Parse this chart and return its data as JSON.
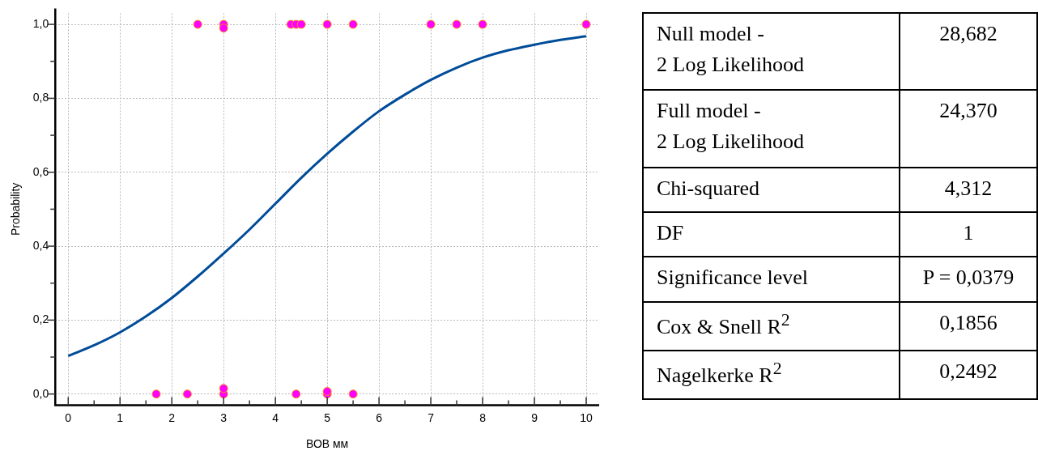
{
  "chart_data": [
    {
      "type": "scatter",
      "xlabel": "ВОВ мм",
      "ylabel": "Probability",
      "xlim": [
        -0.25,
        10.25
      ],
      "ylim": [
        -0.03,
        1.03
      ],
      "xticks": [
        0,
        {
          "value": 0.5,
          "label": null
        },
        1,
        {
          "value": 1.5,
          "label": null
        },
        2,
        {
          "value": 2.5,
          "label": null
        },
        3,
        {
          "value": 3.5,
          "label": null
        },
        4,
        {
          "value": 4.5,
          "label": null
        },
        5,
        {
          "value": 5.5,
          "label": null
        },
        6,
        {
          "value": 6.5,
          "label": null
        },
        7,
        {
          "value": 7.5,
          "label": null
        },
        8,
        {
          "value": 8.5,
          "label": null
        },
        9,
        {
          "value": 9.5,
          "label": null
        },
        10
      ],
      "yticks": [
        {
          "value": 0,
          "label": "0,0"
        },
        {
          "value": 0.1,
          "label": null
        },
        {
          "value": 0.2,
          "label": "0,2"
        },
        {
          "value": 0.3,
          "label": null
        },
        {
          "value": 0.4,
          "label": "0,4"
        },
        {
          "value": 0.5,
          "label": null
        },
        {
          "value": 0.6,
          "label": "0,6"
        },
        {
          "value": 0.7,
          "label": null
        },
        {
          "value": 0.8,
          "label": "0,8"
        },
        {
          "value": 0.9,
          "label": null
        },
        {
          "value": 1,
          "label": "1,0"
        }
      ],
      "grid": true,
      "legend": false,
      "series": [
        {
          "type": "line",
          "color": "#004c99",
          "marker": "none",
          "line_style": "solid",
          "x": [
            0,
            0.5,
            1,
            1.5,
            2,
            2.5,
            3,
            3.5,
            4,
            4.5,
            5,
            5.5,
            6,
            6.5,
            7,
            7.5,
            8,
            8.5,
            9,
            9.5,
            10
          ],
          "values": [
            0.103,
            0.132,
            0.167,
            0.21,
            0.26,
            0.318,
            0.38,
            0.445,
            0.515,
            0.585,
            0.65,
            0.71,
            0.765,
            0.81,
            0.85,
            0.883,
            0.91,
            0.93,
            0.945,
            0.958,
            0.968
          ]
        },
        {
          "type": "scatter",
          "color": "#ff00ff",
          "marker": "circle",
          "x": [
            2.5,
            3,
            3,
            4.3,
            4.4,
            4.5,
            5,
            5.5,
            7,
            7.5,
            8,
            10,
            1.7,
            2.3,
            3,
            3,
            4.4,
            5,
            5,
            5.5
          ],
          "values": [
            1,
            1,
            0.99,
            1,
            1,
            1,
            1,
            1,
            1,
            1,
            1,
            1,
            0,
            0,
            0,
            0.015,
            0,
            0,
            0.007,
            0
          ]
        }
      ]
    },
    {
      "type": "other",
      "annotations": [
        "Null model -\n2 Log Likelihood",
        "28,682",
        "Full model -\n2 Log Likelihood",
        "24,370",
        "Chi-squared",
        "4,312",
        "DF",
        "1",
        "Significance level",
        "P = 0,0379",
        "Cox & Snell R$^{2}$",
        "0,1856",
        "Nagelkerke R$^{2}$",
        "0,2492"
      ]
    }
  ]
}
